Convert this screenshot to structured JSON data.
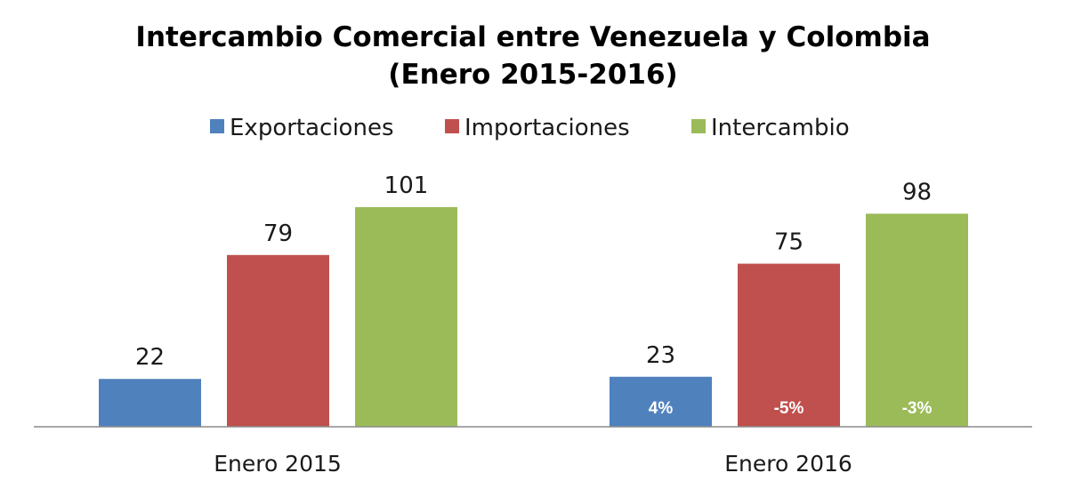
{
  "chart_data": {
    "type": "bar",
    "title_line1": "Intercambio Comercial entre  Venezuela y  Colombia",
    "title_line2": "(Enero 2015-2016)",
    "categories": [
      "Enero 2015",
      "Enero 2016"
    ],
    "series": [
      {
        "name": "Exportaciones",
        "color": "#4f81bd",
        "values": [
          22,
          23
        ],
        "value_labels": [
          "22",
          "23"
        ],
        "inner_labels": [
          "",
          "4%"
        ]
      },
      {
        "name": "Importaciones",
        "color": "#c0504d",
        "values": [
          79,
          75
        ],
        "value_labels": [
          "79",
          "75"
        ],
        "inner_labels": [
          "",
          "-5%"
        ]
      },
      {
        "name": "Intercambio",
        "color": "#9bbb59",
        "values": [
          101,
          98
        ],
        "value_labels": [
          "101",
          "98"
        ],
        "inner_labels": [
          "",
          "-3%"
        ]
      }
    ],
    "xlabel": "",
    "ylabel": "",
    "ylim": [
      0,
      101
    ],
    "grid": false,
    "legend_position": "top"
  }
}
